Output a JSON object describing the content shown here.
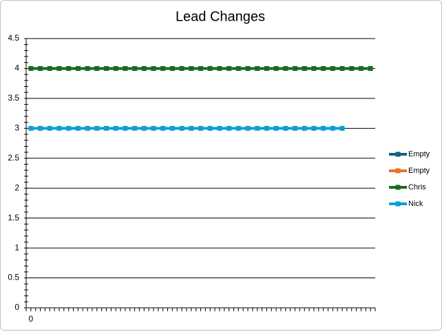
{
  "chart_data": {
    "type": "line",
    "title": "Lead Changes",
    "categories": [
      "0",
      null,
      null,
      null,
      null,
      null,
      null,
      null,
      null,
      null,
      null,
      null,
      null,
      null,
      null,
      null,
      null,
      null,
      null,
      null,
      null,
      null,
      null,
      null,
      null,
      null,
      null,
      null,
      null,
      null,
      null,
      null,
      null,
      null,
      null,
      null,
      null
    ],
    "series": [
      {
        "name": "Empty",
        "color": "#156082",
        "values": [
          null,
          null,
          null,
          null,
          null,
          null,
          null,
          null,
          null,
          null,
          null,
          null,
          null,
          null,
          null,
          null,
          null,
          null,
          null,
          null,
          null,
          null,
          null,
          null,
          null,
          null,
          null,
          null,
          null,
          null,
          null,
          null,
          null,
          null,
          null,
          null,
          null
        ]
      },
      {
        "name": "Empty",
        "color": "#E97132",
        "values": [
          null,
          null,
          null,
          null,
          null,
          null,
          null,
          null,
          null,
          null,
          null,
          null,
          null,
          null,
          null,
          null,
          null,
          null,
          null,
          null,
          null,
          null,
          null,
          null,
          null,
          null,
          null,
          null,
          null,
          null,
          null,
          null,
          null,
          null,
          null,
          null,
          null
        ]
      },
      {
        "name": "Chris",
        "color": "#196B24",
        "values": [
          4,
          4,
          4,
          4,
          4,
          4,
          4,
          4,
          4,
          4,
          4,
          4,
          4,
          4,
          4,
          4,
          4,
          4,
          4,
          4,
          4,
          4,
          4,
          4,
          4,
          4,
          4,
          4,
          4,
          4,
          4,
          4,
          4,
          4,
          4,
          4,
          4
        ]
      },
      {
        "name": "Nick",
        "color": "#0F9ED5",
        "values": [
          3,
          3,
          3,
          3,
          3,
          3,
          3,
          3,
          3,
          3,
          3,
          3,
          3,
          3,
          3,
          3,
          3,
          3,
          3,
          3,
          3,
          3,
          3,
          3,
          3,
          3,
          3,
          3,
          3,
          3,
          3,
          3,
          3,
          3,
          null,
          null,
          null
        ]
      }
    ],
    "ylim": [
      0,
      4.5
    ],
    "yticks": [
      0,
      0.5,
      1,
      1.5,
      2,
      2.5,
      3,
      3.5,
      4,
      4.5
    ],
    "grid": true,
    "legend": "right"
  }
}
